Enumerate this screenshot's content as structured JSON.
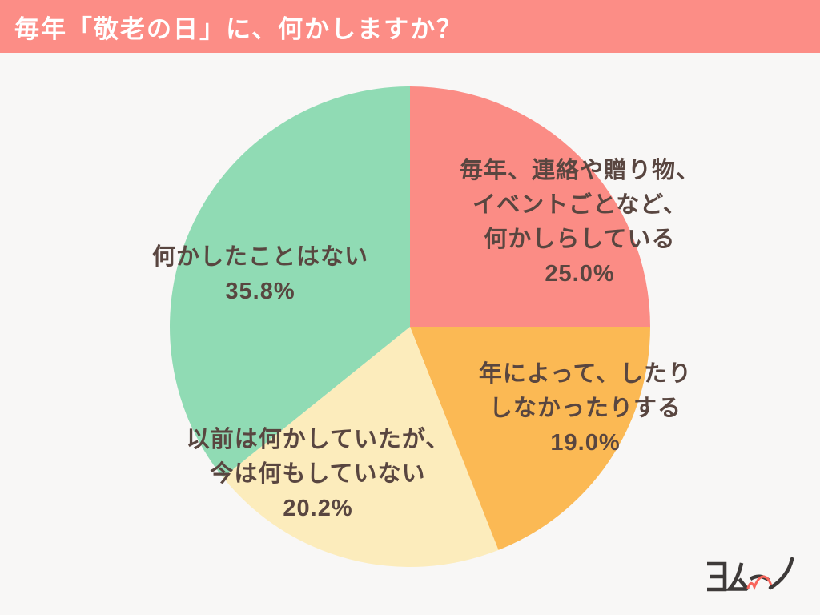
{
  "header": {
    "title": "毎年「敬老の日」に、何かしますか？"
  },
  "theme": {
    "header_bg": "#FC8D86",
    "page_bg": "#F8F7F6",
    "label_text_color": "#594640",
    "title_color": "#FFFFFF"
  },
  "chart_data": {
    "type": "pie",
    "title": "毎年「敬老の日」に、何かしますか？",
    "start_angle_deg": 0,
    "direction": "clockwise",
    "legend_position": "labels-on-chart",
    "slices": [
      {
        "label": "毎年、連絡や贈り物、\nイベントごとなど、\n何かしらしている",
        "value": 25.0,
        "pct_label": "25.0%",
        "color": "#FB8C85"
      },
      {
        "label": "年によって、したり\nしなかったりする",
        "value": 19.0,
        "pct_label": "19.0%",
        "color": "#FBB954"
      },
      {
        "label": "以前は何かしていたが、\n今は何もしていない",
        "value": 20.2,
        "pct_label": "20.2%",
        "color": "#FCECBC"
      },
      {
        "label": "何かしたことはない",
        "value": 35.8,
        "pct_label": "35.8%",
        "color": "#90DBB4"
      }
    ]
  },
  "logo": {
    "text": "ヨムーノ",
    "color": "#3E3A39",
    "accent_color": "#F9655B"
  }
}
